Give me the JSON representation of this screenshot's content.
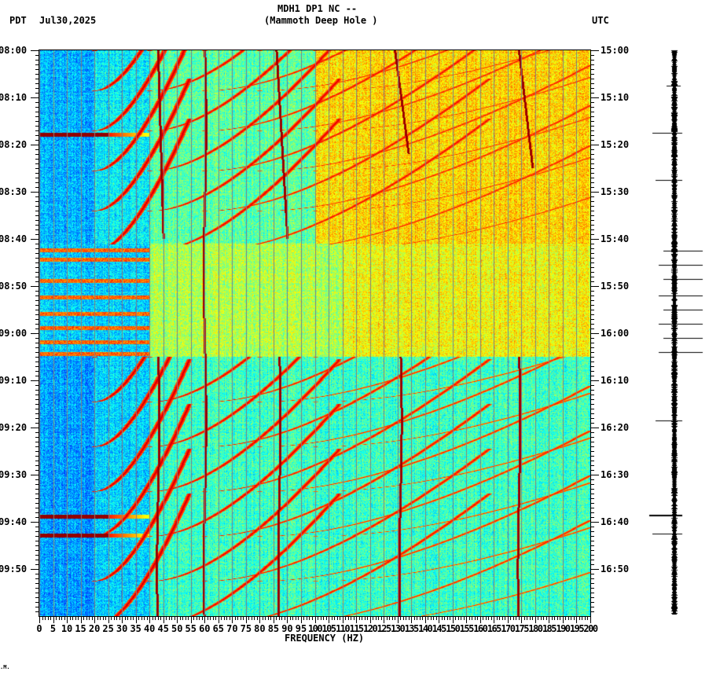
{
  "header": {
    "station": "MDH1 DP1 NC --",
    "site": "(Mammoth Deep Hole )",
    "left_tz": "PDT",
    "date": "Jul30,2025",
    "right_tz": "UTC"
  },
  "footer": {
    "mark": ".M."
  },
  "chart_data": {
    "type": "heatmap",
    "title": "MDH1 DP1 NC -- (Mammoth Deep Hole )",
    "xlabel": "FREQUENCY (HZ)",
    "ylabel_left": "PDT",
    "ylabel_right": "UTC",
    "xlim": [
      0,
      200
    ],
    "x_ticks": [
      0,
      5,
      10,
      15,
      20,
      25,
      30,
      35,
      40,
      45,
      50,
      55,
      60,
      65,
      70,
      75,
      80,
      85,
      90,
      95,
      100,
      105,
      110,
      115,
      120,
      125,
      130,
      135,
      140,
      145,
      150,
      155,
      160,
      165,
      170,
      175,
      180,
      185,
      190,
      195,
      200
    ],
    "x_tick_labels": [
      "0",
      "5",
      "10",
      "15",
      "20",
      "25",
      "30",
      "35",
      "40",
      "45",
      "50",
      "55",
      "60",
      "65",
      "70",
      "75",
      "80",
      "85",
      "90",
      "95",
      "100",
      "105",
      "110",
      "115",
      "120",
      "125",
      "130",
      "135",
      "140",
      "145",
      "150",
      "155",
      "160",
      "165",
      "170",
      "175",
      "180",
      "185",
      "190",
      "195",
      "200"
    ],
    "y_range_minutes": [
      0,
      120
    ],
    "y_ticks_left": [
      "08:00",
      "08:10",
      "08:20",
      "08:30",
      "08:40",
      "08:50",
      "09:00",
      "09:10",
      "09:20",
      "09:30",
      "09:40",
      "09:50"
    ],
    "y_ticks_right": [
      "15:00",
      "15:10",
      "15:20",
      "15:30",
      "15:40",
      "15:50",
      "16:00",
      "16:10",
      "16:20",
      "16:30",
      "16:40",
      "16:50"
    ],
    "colormap": "jet",
    "colors": {
      "low": "#0055ff",
      "mid": "#00e5ff",
      "high": "#ffff00",
      "peak": "#800000",
      "grid": "#808080"
    },
    "background_levels": [
      {
        "t_start": 0,
        "t_end": 41,
        "note": "low freq blue, high freq (>100Hz) yellow/orange"
      },
      {
        "t_start": 41,
        "t_end": 65,
        "note": "horizontal banding below 40Hz, mixed yellow mid/high"
      },
      {
        "t_start": 65,
        "t_end": 120,
        "note": "low freq blue, high freq cyan/green"
      }
    ],
    "steady_lines_hz": [
      {
        "hz": 60,
        "t_start": 0,
        "t_end": 120
      },
      {
        "hz": 43,
        "t_start": 65,
        "t_end": 120
      },
      {
        "hz": 87,
        "t_start": 65,
        "t_end": 120
      },
      {
        "hz": 131,
        "t_start": 65,
        "t_end": 120
      },
      {
        "hz": 174,
        "t_start": 65,
        "t_end": 120
      }
    ],
    "drifting_lines": [
      {
        "hz_start": 43,
        "hz_end": 45,
        "t_start": 0,
        "t_end": 40
      },
      {
        "hz_start": 86,
        "hz_end": 90,
        "t_start": 0,
        "t_end": 40
      },
      {
        "hz_start": 129,
        "hz_end": 134,
        "t_start": 0,
        "t_end": 22
      },
      {
        "hz_start": 174,
        "hz_end": 179,
        "t_start": 0,
        "t_end": 25
      }
    ],
    "chirp_sweeps": [
      {
        "t_start": 0,
        "period_min": 8.5,
        "count": 5,
        "region": "0-41"
      },
      {
        "t_start": 65,
        "period_min": 9.5,
        "count": 6,
        "region": "65-120"
      }
    ],
    "broadband_events_min": [
      17.5,
      98.5,
      102.5
    ],
    "banding_rows_min": [
      42,
      44,
      48.5,
      52,
      55.5,
      58.5,
      61.5,
      64
    ]
  },
  "seismogram": {
    "tick_times_min": [
      7.5,
      17.5,
      27.5,
      42.5,
      45.5,
      48.5,
      52,
      55,
      58,
      61,
      64,
      78.5,
      98.5,
      102.5
    ]
  }
}
